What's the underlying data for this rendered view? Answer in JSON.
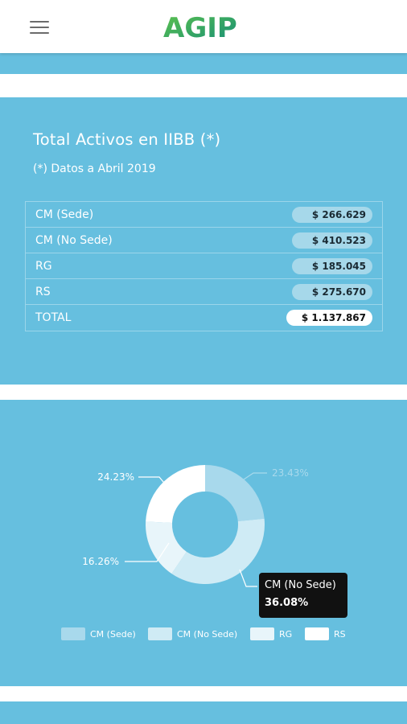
{
  "header": {
    "menu_icon": "hamburger-menu-icon",
    "logo_text": "AGIP"
  },
  "summary_card": {
    "title": "Total Activos en IIBB (*)",
    "note": "(*) Datos a Abril 2019",
    "rows": [
      {
        "label": "CM (Sede)",
        "value": "$ 266.629"
      },
      {
        "label": "CM (No Sede)",
        "value": "$ 410.523"
      },
      {
        "label": "RG",
        "value": "$ 185.045"
      },
      {
        "label": "RS",
        "value": "$ 275.670"
      },
      {
        "label": "TOTAL",
        "value": "$ 1.137.867"
      }
    ]
  },
  "chart_data": {
    "type": "pie",
    "categories": [
      "CM (Sede)",
      "CM (No Sede)",
      "RG",
      "RS"
    ],
    "values": [
      23.43,
      36.08,
      16.26,
      24.23
    ],
    "labels": [
      "23.43%",
      "36.08%",
      "16.26%",
      "24.23%"
    ],
    "colors": [
      "#a8d9ec",
      "#cfebf5",
      "#e8f5fa",
      "#ffffff"
    ],
    "legend_position": "bottom"
  },
  "tooltip": {
    "name": "CM (No Sede)",
    "value": "36.08%"
  },
  "colors": {
    "card_bg": "#66bfdf",
    "logo_green": "#2daa4a",
    "logo_teal": "#1c9a8c"
  }
}
